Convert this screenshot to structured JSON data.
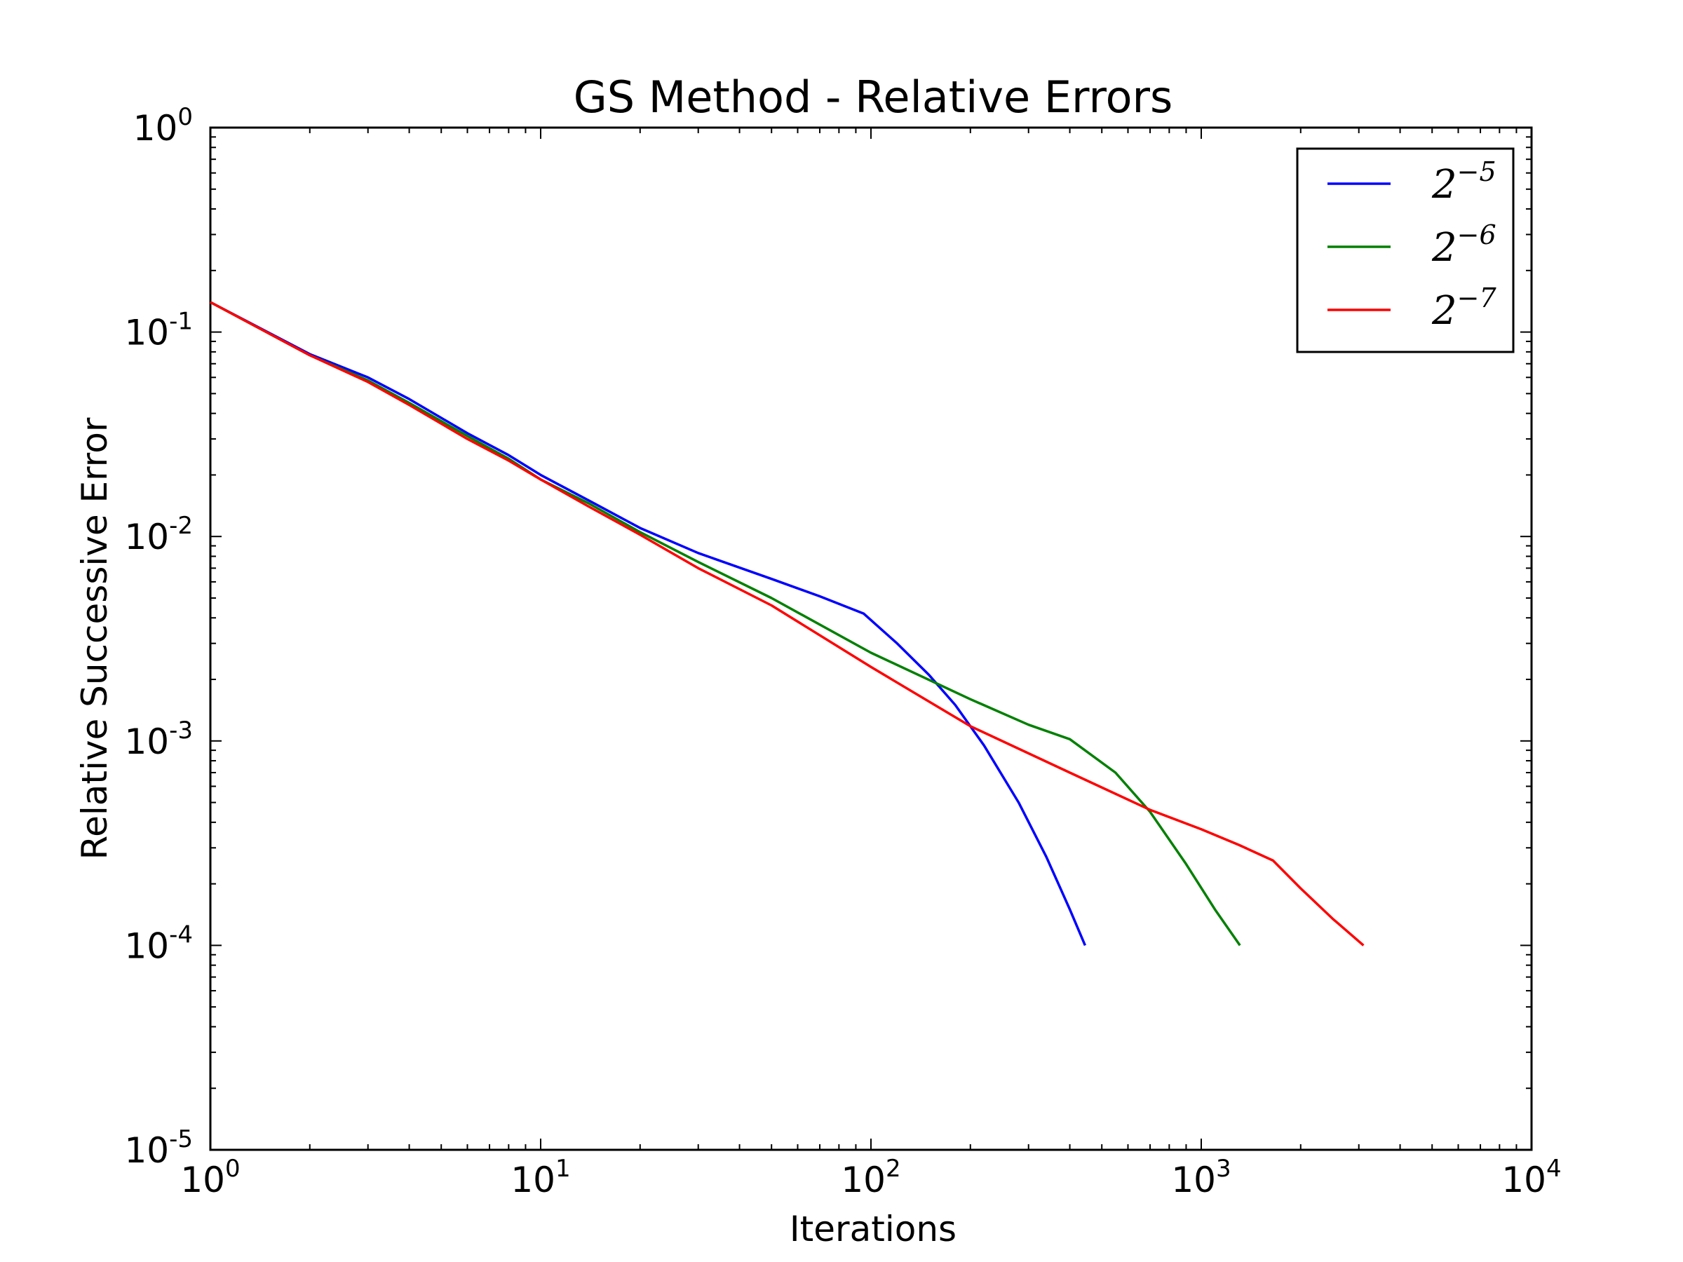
{
  "chart_data": {
    "type": "line",
    "title": "GS Method - Relative Errors",
    "xlabel": "Iterations",
    "ylabel": "Relative Successive Error",
    "xscale": "log",
    "yscale": "log",
    "xlim": [
      1,
      10000
    ],
    "ylim": [
      1e-05,
      1
    ],
    "x_ticks": [
      {
        "base": "10",
        "exp": "0",
        "value": 1
      },
      {
        "base": "10",
        "exp": "1",
        "value": 10
      },
      {
        "base": "10",
        "exp": "2",
        "value": 100
      },
      {
        "base": "10",
        "exp": "3",
        "value": 1000
      },
      {
        "base": "10",
        "exp": "4",
        "value": 10000
      }
    ],
    "y_ticks": [
      {
        "base": "10",
        "exp": "0",
        "value": 1
      },
      {
        "base": "10",
        "exp": "-1",
        "value": 0.1
      },
      {
        "base": "10",
        "exp": "-2",
        "value": 0.01
      },
      {
        "base": "10",
        "exp": "-3",
        "value": 0.001
      },
      {
        "base": "10",
        "exp": "-4",
        "value": 0.0001
      },
      {
        "base": "10",
        "exp": "-5",
        "value": 1e-05
      }
    ],
    "grid": false,
    "legend_position": "upper-right",
    "series": [
      {
        "name": "2^-5",
        "legend_base": "2",
        "legend_exp": "−5",
        "color": "#0000ff",
        "x": [
          1,
          2,
          3,
          4,
          6,
          8,
          10,
          14,
          20,
          30,
          50,
          70,
          95,
          120,
          150,
          180,
          220,
          280,
          340,
          400,
          445
        ],
        "y": [
          0.14,
          0.078,
          0.06,
          0.047,
          0.032,
          0.025,
          0.02,
          0.015,
          0.011,
          0.0083,
          0.0062,
          0.0051,
          0.0042,
          0.003,
          0.0021,
          0.0015,
          0.00095,
          0.0005,
          0.00027,
          0.00015,
          0.0001
        ]
      },
      {
        "name": "2^-6",
        "legend_base": "2",
        "legend_exp": "−6",
        "color": "#008000",
        "x": [
          1,
          2,
          3,
          4,
          6,
          8,
          10,
          14,
          20,
          30,
          50,
          100,
          200,
          300,
          400,
          550,
          700,
          900,
          1100,
          1310
        ],
        "y": [
          0.14,
          0.077,
          0.058,
          0.045,
          0.031,
          0.024,
          0.019,
          0.0145,
          0.0105,
          0.0075,
          0.005,
          0.0027,
          0.0016,
          0.0012,
          0.00102,
          0.0007,
          0.00045,
          0.00025,
          0.00015,
          0.0001
        ]
      },
      {
        "name": "2^-7",
        "legend_base": "2",
        "legend_exp": "−7",
        "color": "#ff0000",
        "x": [
          1,
          2,
          3,
          4,
          6,
          8,
          10,
          14,
          20,
          30,
          50,
          100,
          200,
          400,
          700,
          1000,
          1300,
          1650,
          2000,
          2500,
          3100
        ],
        "y": [
          0.14,
          0.077,
          0.057,
          0.044,
          0.03,
          0.0235,
          0.019,
          0.014,
          0.0102,
          0.007,
          0.0046,
          0.0023,
          0.00118,
          0.0007,
          0.00046,
          0.00037,
          0.00031,
          0.00026,
          0.00019,
          0.000135,
          0.0001
        ]
      }
    ]
  }
}
